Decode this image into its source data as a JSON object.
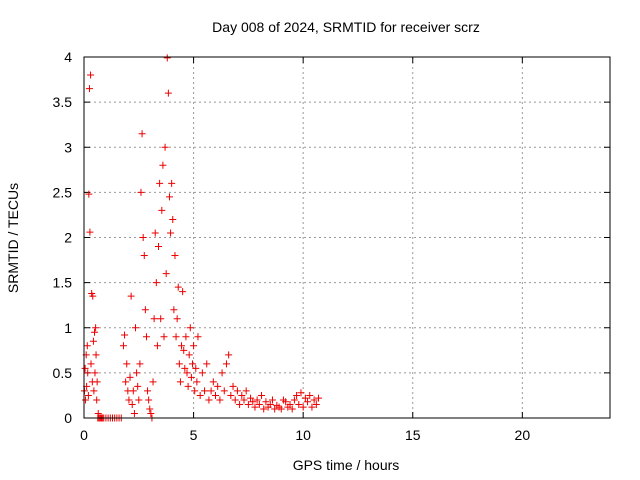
{
  "chart_data": {
    "type": "scatter",
    "title": "Day 008 of 2024, SRMTID for receiver scrz",
    "xlabel": "GPS time / hours",
    "ylabel": "SRMTID / TECUs",
    "xlim": [
      0,
      24
    ],
    "ylim": [
      0,
      4
    ],
    "xticks": [
      0,
      5,
      10,
      15,
      20
    ],
    "xtick_labels": [
      "0",
      "5",
      "10",
      "15",
      "20"
    ],
    "yticks": [
      0,
      0.5,
      1,
      1.5,
      2,
      2.5,
      3,
      3.5,
      4
    ],
    "ytick_labels": [
      "0",
      "0.5",
      "1",
      "1.5",
      "2",
      "2.5",
      "3",
      "3.5",
      "4"
    ],
    "grid": true,
    "marker": "+",
    "colors": {
      "marker": "#ee0000",
      "grid": "#999999",
      "axis": "#000000"
    },
    "series": [
      {
        "name": "SRMTID",
        "x": [
          0.02,
          0.05,
          0.07,
          0.1,
          0.12,
          0.15,
          0.17,
          0.2,
          0.22,
          0.25,
          0.27,
          0.3,
          0.32,
          0.35,
          0.38,
          0.4,
          0.43,
          0.45,
          0.48,
          0.5,
          0.53,
          0.55,
          0.58,
          0.6,
          0.63,
          0.65,
          0.68,
          0.7,
          0.75,
          0.8,
          0.85,
          0.9,
          1.0,
          1.1,
          1.2,
          1.3,
          1.4,
          1.5,
          1.6,
          1.7,
          1.8,
          1.85,
          1.9,
          1.95,
          2.0,
          2.05,
          2.1,
          2.15,
          2.2,
          2.25,
          2.3,
          2.35,
          2.4,
          2.45,
          2.5,
          2.55,
          2.6,
          2.65,
          2.7,
          2.75,
          2.8,
          2.85,
          2.9,
          2.95,
          3.0,
          3.05,
          3.1,
          3.15,
          3.2,
          3.25,
          3.3,
          3.35,
          3.4,
          3.45,
          3.5,
          3.55,
          3.6,
          3.65,
          3.7,
          3.75,
          3.8,
          3.85,
          3.9,
          3.95,
          4.0,
          4.05,
          4.1,
          4.15,
          4.2,
          4.25,
          4.3,
          4.35,
          4.4,
          4.45,
          4.5,
          4.55,
          4.6,
          4.65,
          4.7,
          4.75,
          4.8,
          4.85,
          4.9,
          4.95,
          5.0,
          5.05,
          5.1,
          5.15,
          5.2,
          5.3,
          5.4,
          5.5,
          5.6,
          5.7,
          5.8,
          5.9,
          6.0,
          6.1,
          6.2,
          6.3,
          6.4,
          6.5,
          6.6,
          6.7,
          6.8,
          6.9,
          7.0,
          7.1,
          7.2,
          7.3,
          7.4,
          7.5,
          7.6,
          7.7,
          7.8,
          7.9,
          8.0,
          8.1,
          8.2,
          8.3,
          8.4,
          8.5,
          8.6,
          8.7,
          8.8,
          8.9,
          9.0,
          9.1,
          9.2,
          9.3,
          9.4,
          9.5,
          9.6,
          9.7,
          9.8,
          9.9,
          10.0,
          10.1,
          10.2,
          10.3,
          10.4,
          10.5,
          10.6,
          10.7
        ],
        "y": [
          0.3,
          0.55,
          0.2,
          0.7,
          0.35,
          0.8,
          0.5,
          0.25,
          2.48,
          3.65,
          2.06,
          3.8,
          0.6,
          1.38,
          0.4,
          1.35,
          0.85,
          0.3,
          0.95,
          0.5,
          1.0,
          0.7,
          0.2,
          0.4,
          0.0,
          0.05,
          0.0,
          0.0,
          0.0,
          0.0,
          0.0,
          0.0,
          0.0,
          0.0,
          0.0,
          0.0,
          0.0,
          0.0,
          0.0,
          0.0,
          0.8,
          0.92,
          0.4,
          0.6,
          0.3,
          0.2,
          0.45,
          1.35,
          0.15,
          0.3,
          0.05,
          1.0,
          0.5,
          0.35,
          0.2,
          0.6,
          2.5,
          3.15,
          2.0,
          1.8,
          1.2,
          0.9,
          0.3,
          0.2,
          0.1,
          0.05,
          0.0,
          0.4,
          1.1,
          2.05,
          1.5,
          0.8,
          1.9,
          2.6,
          1.1,
          2.3,
          2.8,
          0.9,
          3.0,
          1.6,
          3.99,
          3.6,
          2.45,
          2.05,
          2.6,
          2.2,
          1.2,
          1.8,
          0.9,
          1.1,
          1.45,
          0.6,
          0.4,
          0.8,
          1.4,
          0.75,
          0.55,
          0.9,
          0.5,
          0.35,
          0.7,
          1.0,
          0.45,
          0.6,
          0.8,
          0.3,
          0.55,
          0.4,
          0.9,
          0.25,
          0.5,
          0.3,
          0.6,
          0.2,
          0.3,
          0.4,
          0.25,
          0.35,
          0.2,
          0.5,
          0.3,
          0.6,
          0.7,
          0.25,
          0.35,
          0.2,
          0.3,
          0.15,
          0.25,
          0.2,
          0.3,
          0.15,
          0.22,
          0.18,
          0.12,
          0.2,
          0.15,
          0.25,
          0.1,
          0.18,
          0.12,
          0.15,
          0.2,
          0.1,
          0.14,
          0.12,
          0.1,
          0.2,
          0.18,
          0.12,
          0.15,
          0.1,
          0.2,
          0.25,
          0.15,
          0.28,
          0.12,
          0.22,
          0.18,
          0.25,
          0.12,
          0.2,
          0.15,
          0.22
        ]
      }
    ]
  }
}
